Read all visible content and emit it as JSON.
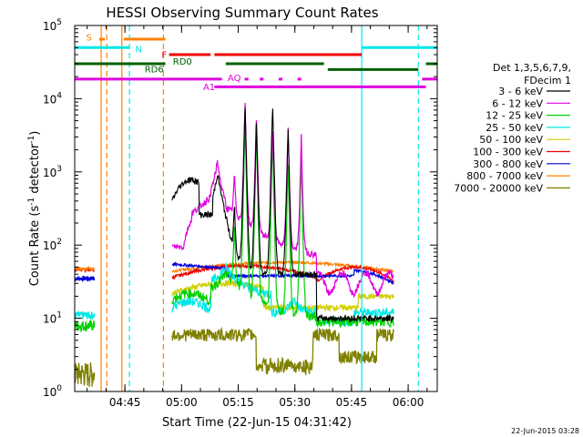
{
  "chart_data": {
    "type": "line",
    "title": "HESSI Observing Summary Count Rates",
    "xlabel": "Start Time (22-Jun-15 04:31:42)",
    "ylabel": "Count Rate (s",
    "ylabel_sup": "-1",
    "ylabel_mid": " detector",
    "ylabel_end": ")",
    "yscale": "log",
    "xlim_minutes": [
      0,
      96
    ],
    "ylim": [
      1,
      100000
    ],
    "x_ticks": [
      {
        "label": "04:45",
        "minute": 13.3
      },
      {
        "label": "05:00",
        "minute": 28.3
      },
      {
        "label": "05:15",
        "minute": 43.3
      },
      {
        "label": "05:30",
        "minute": 58.3
      },
      {
        "label": "05:45",
        "minute": 73.3
      },
      {
        "label": "06:00",
        "minute": 88.3
      }
    ],
    "y_ticks": [
      {
        "base": "10",
        "exp": "0",
        "value": 1
      },
      {
        "base": "10",
        "exp": "1",
        "value": 10
      },
      {
        "base": "10",
        "exp": "2",
        "value": 100
      },
      {
        "base": "10",
        "exp": "3",
        "value": 1000
      },
      {
        "base": "10",
        "exp": "4",
        "value": 10000
      },
      {
        "base": "10",
        "exp": "5",
        "value": 100000
      }
    ],
    "legend_header": [
      "Det 1,3,5,6,7,9,",
      "FDecim 1"
    ],
    "legend_placement": "right",
    "series": [
      {
        "name": "3 - 6 keV",
        "color": "#000000"
      },
      {
        "name": "6 - 12 keV",
        "color": "#e000e0"
      },
      {
        "name": "12 - 25 keV",
        "color": "#00d000"
      },
      {
        "name": "25 - 50 keV",
        "color": "#00e8e8"
      },
      {
        "name": "50 - 100 keV",
        "color": "#d0d000"
      },
      {
        "name": "100 - 300 keV",
        "color": "#ee0000"
      },
      {
        "name": "300 - 800 keV",
        "color": "#0000e0"
      },
      {
        "name": "800 - 7000 keV",
        "color": "#ff8000"
      },
      {
        "name": "7000 - 20000 keV",
        "color": "#808000"
      }
    ],
    "flag_labels": {
      "s": "S",
      "n": "N",
      "f": "F",
      "rd0": "RD0",
      "rd6": "RD6",
      "aq": "AQ",
      "a1": "A1"
    },
    "footer_timestamp": "22-Jun-2015 03:28"
  }
}
